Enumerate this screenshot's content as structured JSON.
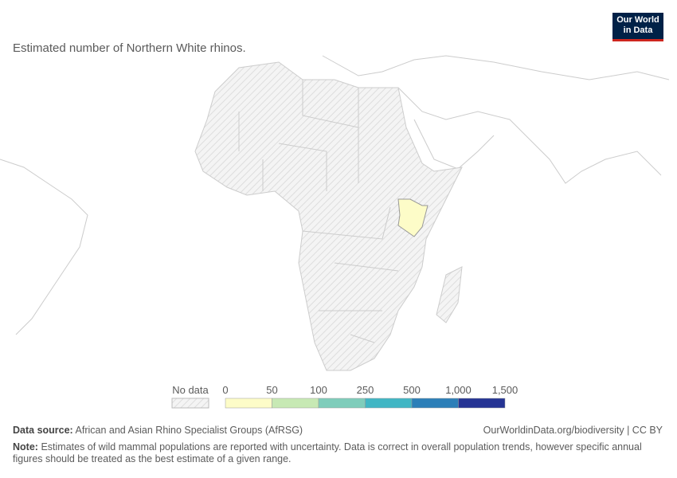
{
  "logo": {
    "line1": "Our World",
    "line2": "in Data"
  },
  "chart_data": {
    "type": "choropleth",
    "subtitle": "Estimated number of Northern White rhinos.",
    "regions": [
      {
        "value": 2
      }
    ],
    "no_data_label": "No data",
    "legend": {
      "ticks": [
        0,
        50,
        100,
        250,
        500,
        {
          "value": 1000,
          "label": "1,000"
        },
        {
          "value": 1500,
          "label": "1,500"
        }
      ],
      "colors": [
        "#fdfcc8",
        "#c7e9b4",
        "#7fcdbb",
        "#41b6c4",
        "#2c7fb8",
        "#253494"
      ]
    }
  },
  "footer": {
    "source_label": "Data source:",
    "source": "African and Asian Rhino Specialist Groups (AfRSG)",
    "url": "OurWorldinData.org/biodiversity | CC BY",
    "note_label": "Note:",
    "note": "Estimates of wild mammal populations are reported with uncertainty. Data is correct in overall population trends, however specific annual figures should be treated as the best estimate of a given range."
  }
}
